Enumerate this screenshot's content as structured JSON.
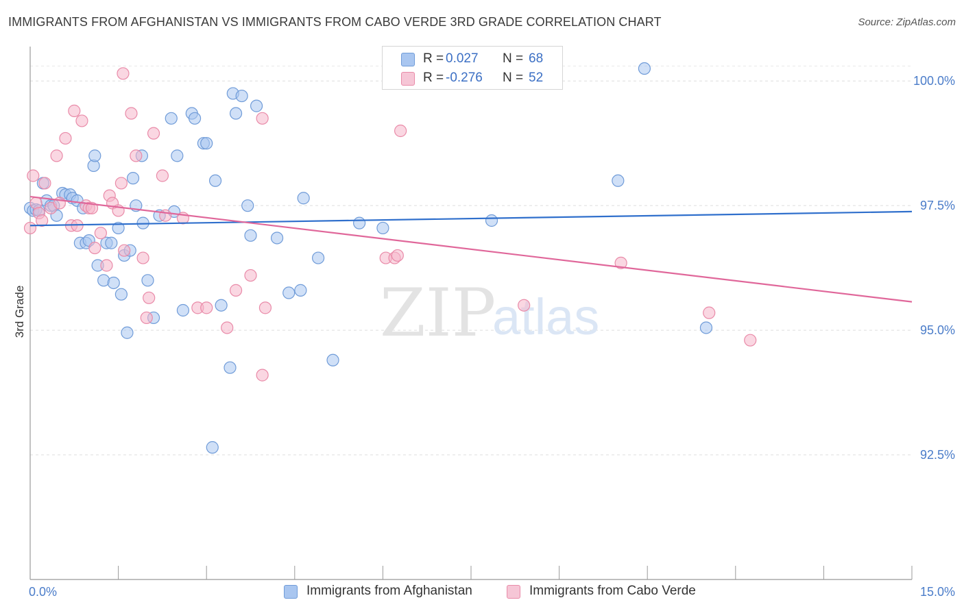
{
  "header": {
    "title": "IMMIGRANTS FROM AFGHANISTAN VS IMMIGRANTS FROM CABO VERDE 3RD GRADE CORRELATION CHART",
    "source": "Source: ZipAtlas.com"
  },
  "watermark": {
    "zip": "ZIP",
    "atlas": "atlas"
  },
  "legend": {
    "series1": {
      "r_label": "R =",
      "r_value": "0.027",
      "n_label": "N =",
      "n_value": "68"
    },
    "series2": {
      "r_label": "R =",
      "r_value": "-0.276",
      "n_label": "N =",
      "n_value": "52"
    }
  },
  "bottom_legend": {
    "series1_label": "Immigrants from Afghanistan",
    "series2_label": "Immigrants from Cabo Verde"
  },
  "colors": {
    "blue_fill": "#a9c6f0",
    "blue_stroke": "#6f9bd8",
    "blue_line": "#2f6fcc",
    "pink_fill": "#f6b7ca",
    "pink_stroke": "#e98aa8",
    "pink_line": "#e0679a",
    "tick_text": "#4a7cc9"
  },
  "chart_data": {
    "type": "scatter",
    "title": "IMMIGRANTS FROM AFGHANISTAN VS IMMIGRANTS FROM CABO VERDE 3RD GRADE CORRELATION CHART",
    "xlabel": "",
    "ylabel": "3rd Grade",
    "xlim": [
      0,
      15
    ],
    "ylim": [
      90.0,
      100.8
    ],
    "x_ticks": [
      {
        "value": 0,
        "label": "0.0%"
      },
      {
        "value": 15,
        "label": "15.0%"
      }
    ],
    "y_ticks": [
      {
        "value": 100.0,
        "label": "100.0%"
      },
      {
        "value": 97.5,
        "label": "97.5%"
      },
      {
        "value": 95.0,
        "label": "95.0%"
      },
      {
        "value": 92.5,
        "label": "92.5%"
      }
    ],
    "x_minor_ticks": [
      1.5,
      3.0,
      4.5,
      6.0,
      7.5,
      9.0,
      10.5,
      12.0,
      13.5,
      15.0
    ],
    "grid": true,
    "legend_position": "top-center",
    "series": [
      {
        "name": "Immigrants from Afghanistan",
        "color": "#a9c6f0",
        "trend": {
          "x": [
            0,
            15
          ],
          "y": [
            97.1,
            97.38
          ]
        },
        "points": [
          [
            0.0,
            97.45
          ],
          [
            0.05,
            97.4
          ],
          [
            0.1,
            97.42
          ],
          [
            0.15,
            97.4
          ],
          [
            0.22,
            97.95
          ],
          [
            0.28,
            97.6
          ],
          [
            0.35,
            97.5
          ],
          [
            0.4,
            97.5
          ],
          [
            0.45,
            97.3
          ],
          [
            0.55,
            97.75
          ],
          [
            0.6,
            97.72
          ],
          [
            0.68,
            97.72
          ],
          [
            0.72,
            97.65
          ],
          [
            0.8,
            97.6
          ],
          [
            0.9,
            97.45
          ],
          [
            0.85,
            96.75
          ],
          [
            0.95,
            96.75
          ],
          [
            1.0,
            96.8
          ],
          [
            1.08,
            98.3
          ],
          [
            1.1,
            98.5
          ],
          [
            1.15,
            96.3
          ],
          [
            1.25,
            96.0
          ],
          [
            1.3,
            96.75
          ],
          [
            1.38,
            96.75
          ],
          [
            1.42,
            95.95
          ],
          [
            1.5,
            97.05
          ],
          [
            1.55,
            95.72
          ],
          [
            1.6,
            96.5
          ],
          [
            1.65,
            94.95
          ],
          [
            1.7,
            96.6
          ],
          [
            1.75,
            98.05
          ],
          [
            1.8,
            97.5
          ],
          [
            1.9,
            98.5
          ],
          [
            1.92,
            97.15
          ],
          [
            2.0,
            96.0
          ],
          [
            2.1,
            95.25
          ],
          [
            2.2,
            97.3
          ],
          [
            2.4,
            99.25
          ],
          [
            2.45,
            97.38
          ],
          [
            2.5,
            98.5
          ],
          [
            2.6,
            95.4
          ],
          [
            2.75,
            99.35
          ],
          [
            2.8,
            99.25
          ],
          [
            2.95,
            98.75
          ],
          [
            3.0,
            98.75
          ],
          [
            3.1,
            92.65
          ],
          [
            3.15,
            98.0
          ],
          [
            3.25,
            95.5
          ],
          [
            3.4,
            94.25
          ],
          [
            3.45,
            99.75
          ],
          [
            3.5,
            99.35
          ],
          [
            3.6,
            99.7
          ],
          [
            3.7,
            97.5
          ],
          [
            3.75,
            96.9
          ],
          [
            3.85,
            99.5
          ],
          [
            4.2,
            96.85
          ],
          [
            4.4,
            95.75
          ],
          [
            4.6,
            95.8
          ],
          [
            4.65,
            97.65
          ],
          [
            4.9,
            96.45
          ],
          [
            5.15,
            94.4
          ],
          [
            5.6,
            97.15
          ],
          [
            6.0,
            97.05
          ],
          [
            6.75,
            100.3
          ],
          [
            7.85,
            97.2
          ],
          [
            10.45,
            100.25
          ],
          [
            11.5,
            95.05
          ],
          [
            10.0,
            98.0
          ]
        ]
      },
      {
        "name": "Immigrants from Cabo Verde",
        "color": "#f6b7ca",
        "trend": {
          "x": [
            0,
            15
          ],
          "y": [
            97.68,
            95.57
          ]
        },
        "points": [
          [
            0.0,
            97.05
          ],
          [
            0.05,
            98.1
          ],
          [
            0.1,
            97.55
          ],
          [
            0.15,
            97.35
          ],
          [
            0.2,
            97.2
          ],
          [
            0.25,
            97.95
          ],
          [
            0.35,
            97.45
          ],
          [
            0.45,
            98.5
          ],
          [
            0.5,
            97.55
          ],
          [
            0.6,
            98.85
          ],
          [
            0.7,
            97.1
          ],
          [
            0.75,
            99.4
          ],
          [
            0.8,
            97.1
          ],
          [
            0.88,
            99.2
          ],
          [
            0.95,
            97.5
          ],
          [
            1.0,
            97.45
          ],
          [
            1.05,
            97.45
          ],
          [
            1.1,
            96.65
          ],
          [
            1.2,
            96.95
          ],
          [
            1.3,
            96.3
          ],
          [
            1.35,
            97.7
          ],
          [
            1.4,
            97.55
          ],
          [
            1.5,
            97.4
          ],
          [
            1.55,
            97.95
          ],
          [
            1.6,
            96.6
          ],
          [
            1.58,
            100.15
          ],
          [
            1.72,
            99.35
          ],
          [
            1.8,
            98.5
          ],
          [
            1.92,
            96.45
          ],
          [
            1.98,
            95.25
          ],
          [
            2.02,
            95.65
          ],
          [
            2.1,
            98.95
          ],
          [
            2.25,
            98.1
          ],
          [
            2.3,
            97.3
          ],
          [
            2.6,
            97.25
          ],
          [
            2.85,
            95.45
          ],
          [
            3.0,
            95.45
          ],
          [
            3.35,
            95.05
          ],
          [
            3.5,
            95.8
          ],
          [
            3.75,
            96.1
          ],
          [
            3.95,
            94.1
          ],
          [
            3.95,
            99.25
          ],
          [
            4.0,
            95.45
          ],
          [
            6.05,
            96.45
          ],
          [
            6.2,
            96.45
          ],
          [
            6.3,
            99.0
          ],
          [
            7.45,
            100.3
          ],
          [
            8.4,
            95.5
          ],
          [
            10.05,
            96.35
          ],
          [
            11.55,
            95.35
          ],
          [
            12.25,
            94.8
          ],
          [
            6.25,
            96.5
          ]
        ]
      }
    ]
  }
}
